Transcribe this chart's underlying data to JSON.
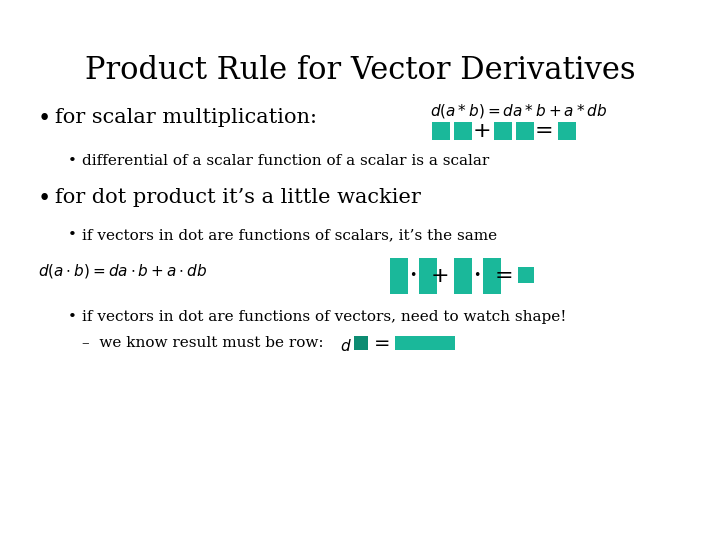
{
  "title": "Product Rule for Vector Derivatives",
  "title_fontsize": 22,
  "title_font": "serif",
  "bg_color": "#ffffff",
  "teal": "#1ab89a",
  "dark_teal": "#0d8c72",
  "text_color": "#000000",
  "bullet1_text": "for scalar multiplication:",
  "bullet1_sub": "differential of a scalar function of a scalar is a scalar",
  "bullet2_text": "for dot product it’s a little wackier",
  "bullet2_sub1": "if vectors in dot are functions of scalars, it’s the same",
  "bullet2_sub2": "if vectors in dot are functions of vectors, need to watch shape!",
  "bullet2_sub3": "–  we know result must be row:"
}
